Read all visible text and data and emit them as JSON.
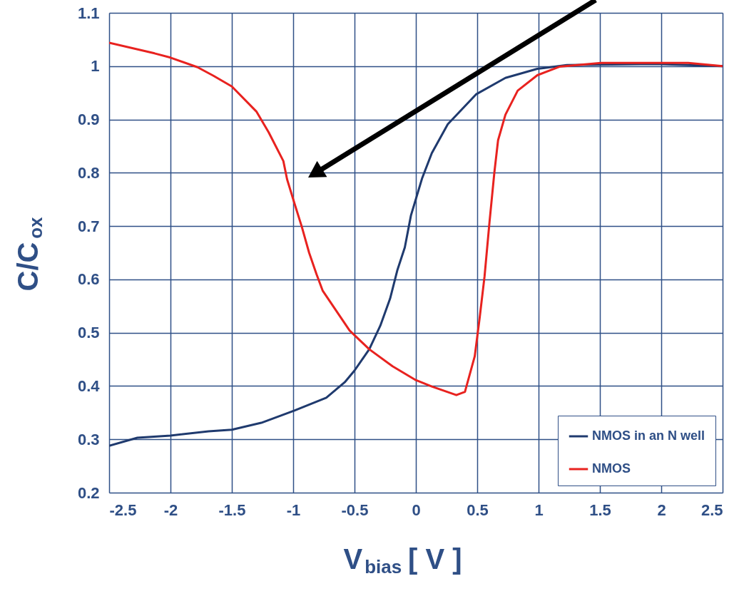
{
  "chart_data": {
    "type": "line",
    "xlabel": "V$_{bias}$ [ V ]",
    "ylabel": "C/C$_{ox}$",
    "xlim": [
      -2.5,
      2.5
    ],
    "ylim": [
      0.2,
      1.1
    ],
    "xticks": [
      -2.5,
      -2,
      -1.5,
      -1,
      -0.5,
      0,
      0.5,
      1,
      1.5,
      2,
      2.5
    ],
    "yticks": [
      0.2,
      0.3,
      0.4,
      0.5,
      0.6,
      0.7,
      0.8,
      0.9,
      1,
      1.1
    ],
    "grid": true,
    "legend": "bottom right",
    "marker": "none",
    "line_style": "solid",
    "series": [
      {
        "name": "NMOS in an N well",
        "color": "#1f3a6e",
        "x": [
          -2.5,
          -2.27,
          -2,
          -1.69,
          -1.5,
          -1.26,
          -0.99,
          -0.73,
          -0.58,
          -0.5,
          -0.38,
          -0.29,
          -0.21,
          -0.15,
          -0.09,
          -0.04,
          0.05,
          0.13,
          0.26,
          0.49,
          0.73,
          0.99,
          1.23,
          1.95,
          2.5
        ],
        "values": [
          0.288,
          0.303,
          0.307,
          0.315,
          0.318,
          0.331,
          0.354,
          0.378,
          0.407,
          0.429,
          0.469,
          0.513,
          0.564,
          0.618,
          0.66,
          0.72,
          0.789,
          0.837,
          0.891,
          0.947,
          0.978,
          0.995,
          1.002,
          1.004,
          1.0
        ]
      },
      {
        "name": "NMOS",
        "color": "#e8221f",
        "x": [
          -2.5,
          -2.13,
          -2,
          -1.78,
          -1.65,
          -1.5,
          -1.3,
          -1.2,
          -1.08,
          -1.05,
          -0.99,
          -0.93,
          -0.87,
          -0.81,
          -0.76,
          -0.54,
          -0.38,
          -0.19,
          0,
          0.13,
          0.33,
          0.4,
          0.48,
          0.52,
          0.56,
          0.6,
          0.64,
          0.67,
          0.73,
          0.83,
          0.99,
          1.17,
          1.51,
          2.22,
          2.5
        ],
        "values": [
          1.044,
          1.024,
          1.016,
          0.998,
          0.982,
          0.962,
          0.915,
          0.876,
          0.822,
          0.788,
          0.743,
          0.699,
          0.65,
          0.61,
          0.579,
          0.504,
          0.469,
          0.437,
          0.411,
          0.399,
          0.383,
          0.389,
          0.456,
          0.528,
          0.606,
          0.707,
          0.801,
          0.861,
          0.909,
          0.954,
          0.983,
          0.999,
          1.006,
          1.006,
          1.0
        ]
      }
    ]
  }
}
